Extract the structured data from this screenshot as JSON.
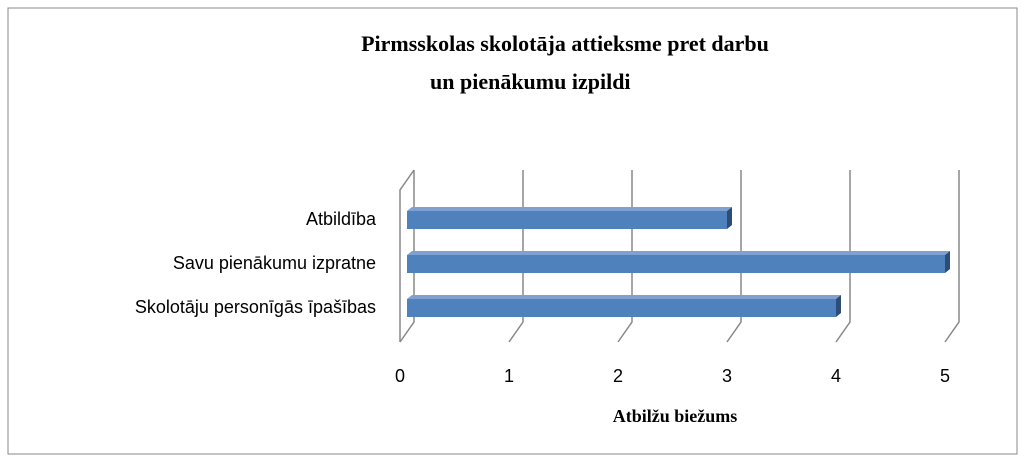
{
  "chart_data": {
    "type": "bar3d",
    "title": [
      "Pirmsskolas skolotāja attieksme pret darbu",
      "un pienākumu izpildi"
    ],
    "x_label": "Atbilžu biežums",
    "categories": [
      "Atbildība",
      "Savu pienākumu izpratne",
      "Skolotāju personīgās īpašības"
    ],
    "values": [
      3,
      5,
      4
    ],
    "color": "#4f81bd",
    "xlim": [
      0,
      5
    ],
    "xticks": [
      0,
      1,
      2,
      3,
      4,
      5
    ],
    "grid": true
  }
}
